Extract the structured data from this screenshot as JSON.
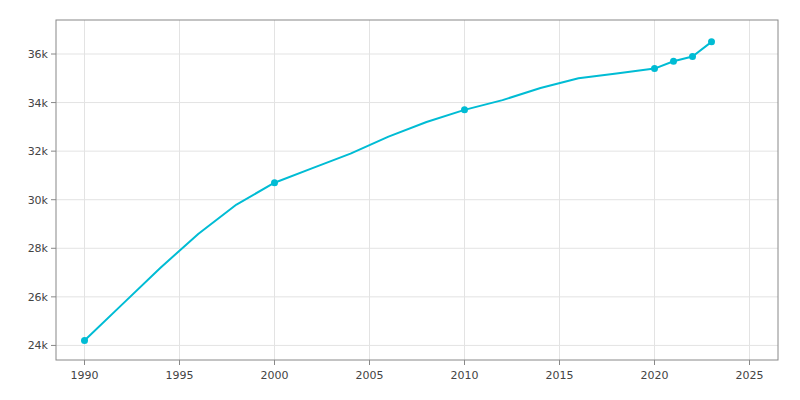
{
  "chart_data": {
    "type": "line",
    "series": [
      {
        "type": "line",
        "color": "#00bcd4",
        "x": [
          1990,
          1992,
          1994,
          1996,
          1998,
          2000,
          2002,
          2004,
          2006,
          2008,
          2010,
          2012,
          2014,
          2016,
          2018,
          2020,
          2021,
          2022,
          2023
        ],
        "values": [
          24200,
          25700,
          27200,
          28600,
          29800,
          30700,
          31300,
          31900,
          32600,
          33200,
          33700,
          34100,
          34600,
          35000,
          35200,
          35400,
          35700,
          35900,
          36500
        ]
      },
      {
        "type": "scatter",
        "color": "#00bcd4",
        "marker": "circle",
        "x": [
          1990,
          2000,
          2010,
          2020,
          2021,
          2022,
          2023
        ],
        "values": [
          24200,
          30700,
          33700,
          35400,
          35700,
          35900,
          36500
        ]
      }
    ],
    "xlim": [
      1988.5,
      2026.5
    ],
    "ylim": [
      23400,
      37400
    ],
    "xticks": [
      1990,
      1995,
      2000,
      2005,
      2010,
      2015,
      2020,
      2025
    ],
    "yticks": [
      {
        "value": 24000,
        "label": "24k"
      },
      {
        "value": 26000,
        "label": "26k"
      },
      {
        "value": 28000,
        "label": "28k"
      },
      {
        "value": 30000,
        "label": "30k"
      },
      {
        "value": 32000,
        "label": "32k"
      },
      {
        "value": 34000,
        "label": "34k"
      },
      {
        "value": 36000,
        "label": "36k"
      }
    ],
    "grid": true
  }
}
